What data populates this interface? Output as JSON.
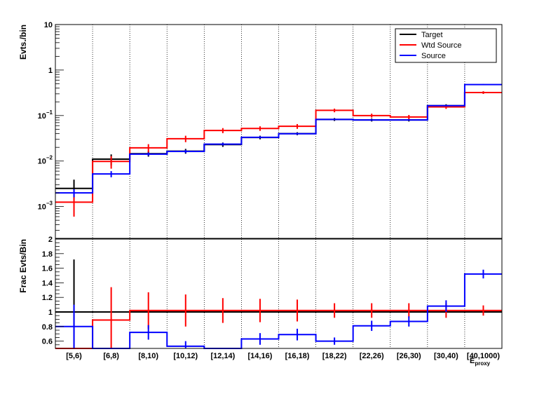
{
  "chart_data": [
    {
      "type": "line",
      "subtype": "step-histogram",
      "panel": "top",
      "ylabel": "Evts./bin",
      "yscale": "log",
      "ylim": [
        0.0002,
        10
      ],
      "yticks": [
        {
          "value": 10,
          "label": "10"
        },
        {
          "value": 1,
          "label": "1"
        },
        {
          "value": 0.1,
          "label": "10",
          "sup": "−1"
        },
        {
          "value": 0.01,
          "label": "10",
          "sup": "−2"
        },
        {
          "value": 0.001,
          "label": "10",
          "sup": "−3"
        }
      ],
      "categories": [
        "[5,6)",
        "[6,8)",
        "[8,10)",
        "[10,12)",
        "[12,14)",
        "[14,16)",
        "[16,18)",
        "[18,22)",
        "[22,26)",
        "[26,30)",
        "[30,40)",
        "[40,1000)"
      ],
      "xlabel": "E",
      "xlabel_sub": "proxy",
      "grid": "x",
      "legend": {
        "position": "top-right"
      },
      "series": [
        {
          "name": "Target",
          "color": "#000000",
          "values": [
            0.0025,
            0.011,
            0.0145,
            0.0165,
            0.023,
            0.033,
            0.04,
            0.082,
            0.08,
            0.08,
            0.165,
            0.32
          ],
          "err_low": [
            0.0011,
            0.003,
            0.002,
            0.002,
            0.0025,
            0.003,
            0.003,
            0.006,
            0.006,
            0.006,
            0.012,
            0.02
          ],
          "err_high": [
            0.0014,
            0.003,
            0.002,
            0.002,
            0.0025,
            0.003,
            0.003,
            0.006,
            0.006,
            0.006,
            0.012,
            0.02
          ]
        },
        {
          "name": "Wtd Source",
          "color": "#ff0000",
          "values": [
            0.00125,
            0.0098,
            0.0195,
            0.031,
            0.047,
            0.052,
            0.058,
            0.13,
            0.1,
            0.093,
            0.155,
            0.32
          ],
          "err_low": [
            0.00065,
            0.003,
            0.004,
            0.005,
            0.006,
            0.006,
            0.007,
            0.012,
            0.01,
            0.01,
            0.015,
            0.02
          ],
          "err_high": [
            0.0008,
            0.003,
            0.004,
            0.005,
            0.006,
            0.006,
            0.007,
            0.012,
            0.01,
            0.01,
            0.015,
            0.02
          ]
        },
        {
          "name": "Source",
          "color": "#0000ff",
          "values": [
            0.002,
            0.0052,
            0.0142,
            0.0163,
            0.0235,
            0.0333,
            0.0398,
            0.082,
            0.08,
            0.08,
            0.165,
            0.48
          ],
          "err_low": [
            0.0004,
            0.0008,
            0.0012,
            0.0013,
            0.0016,
            0.0018,
            0.002,
            0.003,
            0.003,
            0.003,
            0.006,
            0.012
          ],
          "err_high": [
            0.0004,
            0.0008,
            0.0012,
            0.0013,
            0.0016,
            0.0018,
            0.002,
            0.003,
            0.003,
            0.003,
            0.006,
            0.012
          ]
        }
      ]
    },
    {
      "type": "line",
      "subtype": "step-histogram",
      "panel": "bottom",
      "ylabel": "Frac Evts/Bin",
      "ylim": [
        0.5,
        2
      ],
      "yticks": [
        {
          "value": 0.6,
          "label": "0.6"
        },
        {
          "value": 0.8,
          "label": "0.8"
        },
        {
          "value": 1,
          "label": "1"
        },
        {
          "value": 1.2,
          "label": "1.2"
        },
        {
          "value": 1.4,
          "label": "1.4"
        },
        {
          "value": 1.6,
          "label": "1.6"
        },
        {
          "value": 1.8,
          "label": "1.8"
        },
        {
          "value": 2,
          "label": "2"
        }
      ],
      "categories": [
        "[5,6)",
        "[6,8)",
        "[8,10)",
        "[10,12)",
        "[12,14)",
        "[14,16)",
        "[16,18)",
        "[18,22)",
        "[22,26)",
        "[26,30)",
        "[30,40)",
        "[40,1000)"
      ],
      "grid": "x",
      "series": [
        {
          "name": "Target",
          "color": "#000000",
          "values": [
            1,
            1,
            1,
            1,
            1,
            1,
            1,
            1,
            1,
            1,
            1,
            1
          ],
          "err_low": [
            0.5,
            0,
            0,
            0,
            0,
            0,
            0,
            0,
            0,
            0,
            0,
            0
          ],
          "err_high": [
            0.72,
            0,
            0,
            0,
            0,
            0,
            0,
            0,
            0,
            0,
            0,
            0
          ]
        },
        {
          "name": "Wtd Source",
          "color": "#ff0000",
          "values": [
            0.5,
            0.89,
            1.02,
            1.02,
            1.02,
            1.02,
            1.02,
            1.02,
            1.02,
            1.02,
            1.02,
            1.02
          ],
          "err_low": [
            0,
            0.39,
            0.25,
            0.22,
            0.17,
            0.16,
            0.15,
            0.1,
            0.1,
            0.1,
            0.1,
            0.07
          ],
          "err_high": [
            0,
            0.45,
            0.25,
            0.22,
            0.17,
            0.16,
            0.15,
            0.1,
            0.1,
            0.1,
            0.1,
            0.07
          ]
        },
        {
          "name": "Source",
          "color": "#0000ff",
          "values": [
            0.8,
            0.5,
            0.72,
            0.53,
            0.5,
            0.63,
            0.69,
            0.6,
            0.81,
            0.87,
            1.08,
            1.52
          ],
          "err_low": [
            0.3,
            0,
            0.1,
            0.07,
            0,
            0.08,
            0.08,
            0.05,
            0.07,
            0.07,
            0.08,
            0.06
          ],
          "err_high": [
            0.3,
            0,
            0.1,
            0.07,
            0,
            0.08,
            0.08,
            0.05,
            0.07,
            0.07,
            0.08,
            0.06
          ]
        }
      ]
    }
  ]
}
